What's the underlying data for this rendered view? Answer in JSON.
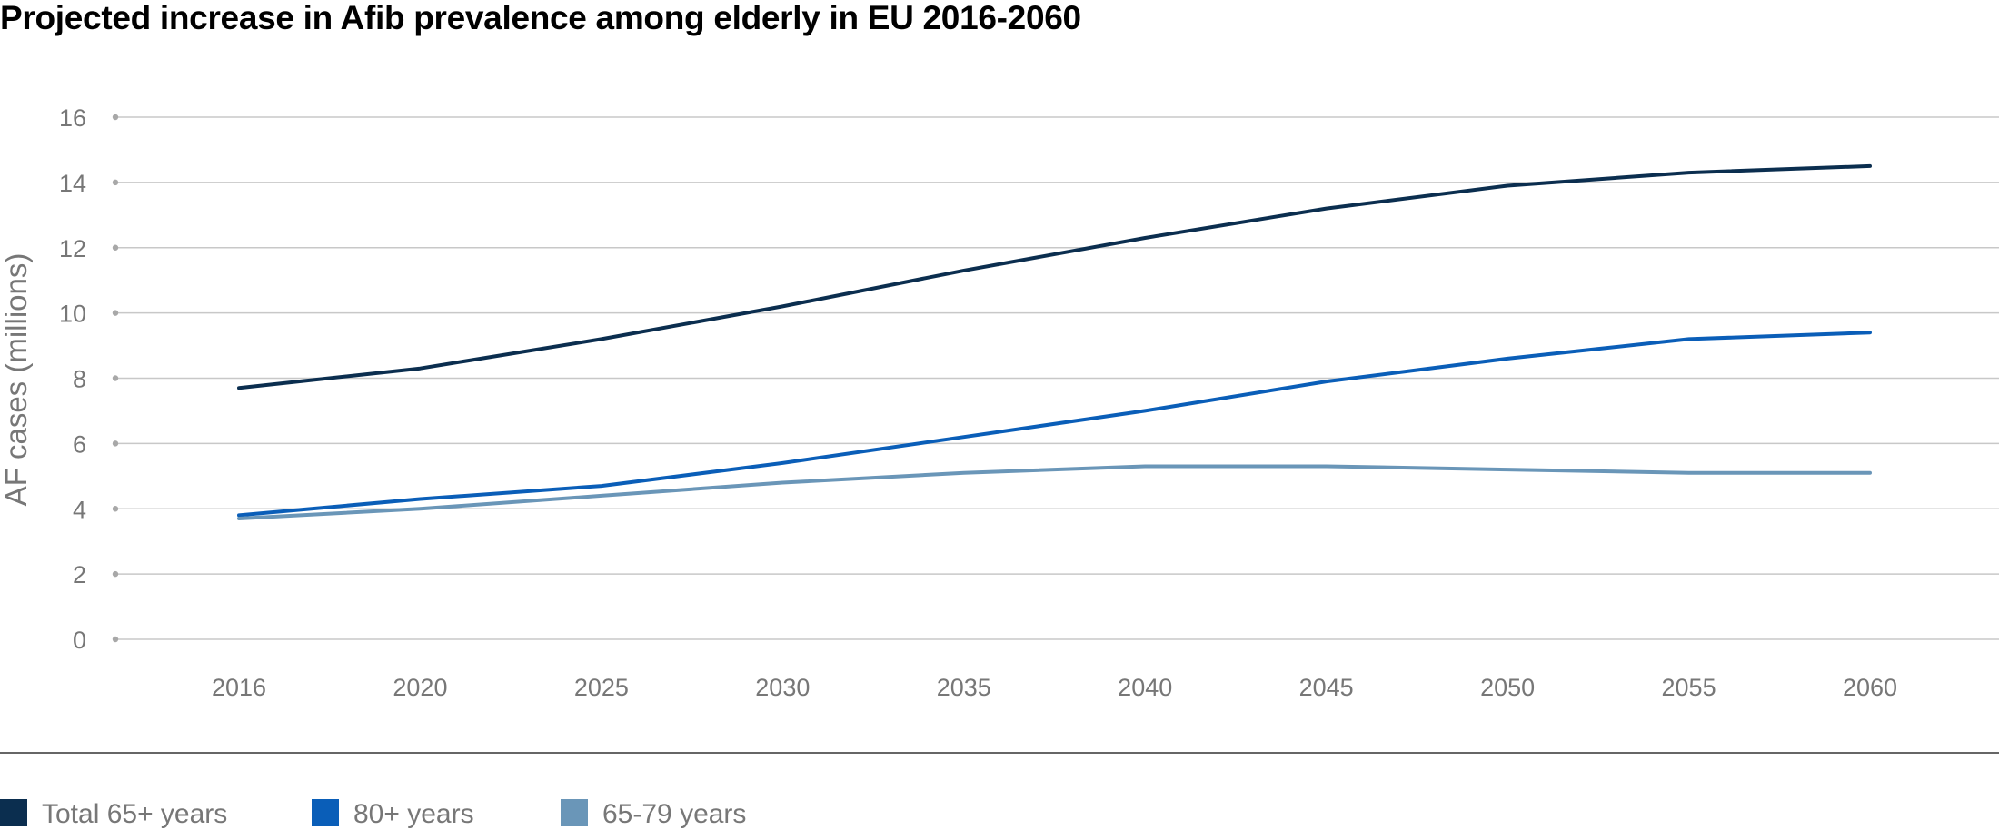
{
  "chart_data": {
    "type": "line",
    "title": "Projected increase in Afib prevalence among elderly in EU 2016-2060",
    "xlabel": "",
    "ylabel": "AF cases (millions)",
    "categories": [
      "2016",
      "2020",
      "2025",
      "2030",
      "2035",
      "2040",
      "2045",
      "2050",
      "2055",
      "2060"
    ],
    "ylim": [
      0,
      16
    ],
    "yticks": [
      "0",
      "2",
      "4",
      "6",
      "8",
      "10",
      "12",
      "14",
      "16"
    ],
    "grid": true,
    "legend_position": "bottom-left",
    "series": [
      {
        "name": "Total 65+ years",
        "color": "#0b2e4f",
        "values": [
          7.7,
          8.3,
          9.2,
          10.2,
          11.3,
          12.3,
          13.2,
          13.9,
          14.3,
          14.5
        ]
      },
      {
        "name": "80+ years",
        "color": "#0a5eb8",
        "values": [
          3.8,
          4.3,
          4.7,
          5.4,
          6.2,
          7.0,
          7.9,
          8.6,
          9.2,
          9.4
        ]
      },
      {
        "name": "65-79 years",
        "color": "#6a96b8",
        "values": [
          3.7,
          4.0,
          4.4,
          4.8,
          5.1,
          5.3,
          5.3,
          5.2,
          5.1,
          5.1
        ]
      }
    ]
  }
}
